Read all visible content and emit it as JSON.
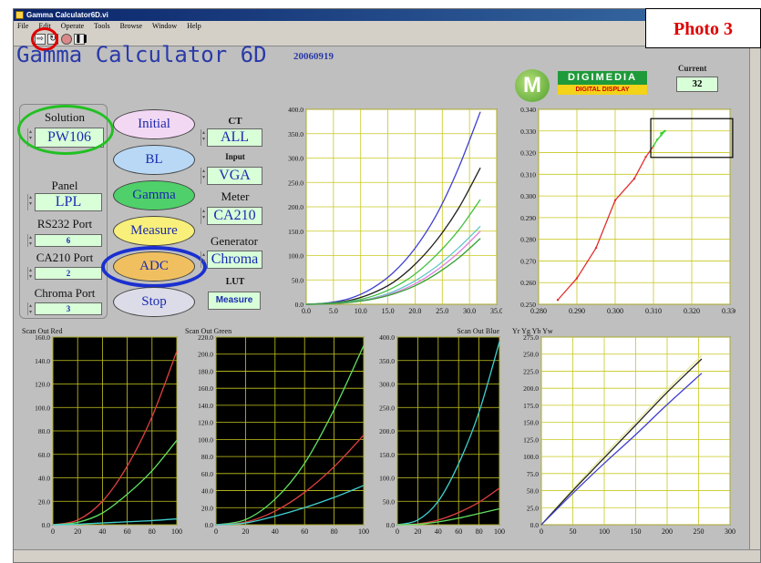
{
  "window": {
    "title": "Gamma Calculator6D.vi"
  },
  "menu": [
    "File",
    "Edit",
    "Operate",
    "Tools",
    "Browse",
    "Window",
    "Help"
  ],
  "photo_label": "Photo 3",
  "app": {
    "title": "Gamma Calculator 6D",
    "version": "20060919"
  },
  "logo": {
    "mark": "M",
    "top": "DIGIMEDIA",
    "bottom": "DIGITAL DISPLAY"
  },
  "current": {
    "label": "Current",
    "value": "32"
  },
  "controls": {
    "solution": {
      "label": "Solution",
      "value": "PW106"
    },
    "panel": {
      "label": "Panel",
      "value": "LPL"
    },
    "rs232": {
      "label": "RS232 Port",
      "value": "6"
    },
    "ca210": {
      "label": "CA210 Port",
      "value": "2"
    },
    "chroma": {
      "label": "Chroma Port",
      "value": "3"
    },
    "ct": {
      "label": "CT",
      "value": "ALL"
    },
    "input": {
      "label": "Input",
      "value": "VGA"
    },
    "meter": {
      "label": "Meter",
      "value": "CA210"
    },
    "generator": {
      "label": "Generator",
      "value": "Chroma"
    },
    "lut": {
      "label": "LUT",
      "value": "Measure"
    }
  },
  "buttons": {
    "initial": "Initial",
    "bl": "BL",
    "gamma": "Gamma",
    "measure": "Measure",
    "adc": "ADC",
    "stop": "Stop"
  },
  "colors": {
    "bg": "#bfbfbf",
    "plot_bg": "#000000",
    "grid": "#c8c820",
    "field_bg": "#d8ffd8",
    "text_blue": "#1a2ab0",
    "photo_red": "#e00000",
    "highlight_red": "#e00000",
    "highlight_green": "#22c022",
    "highlight_blue": "#1a30d0"
  },
  "chart_data": [
    {
      "type": "line",
      "xlim": [
        0,
        35
      ],
      "ylim": [
        0,
        400
      ],
      "xticks": [
        "0.0",
        "5.0",
        "10.0",
        "15.0",
        "20.0",
        "25.0",
        "30.0",
        "35.0"
      ],
      "yticks": [
        "0.0",
        "50.0",
        "100.0",
        "150.0",
        "200.0",
        "250.0",
        "300.0",
        "350.0",
        "400.0"
      ],
      "x": [
        0,
        4,
        8,
        12,
        16,
        20,
        24,
        28,
        32
      ],
      "series": [
        {
          "color": "#4040d0",
          "values": [
            0,
            3,
            12,
            32,
            65,
            115,
            185,
            280,
            395
          ]
        },
        {
          "color": "#202020",
          "values": [
            0,
            2,
            8,
            22,
            45,
            82,
            132,
            197,
            280
          ]
        },
        {
          "color": "#40c040",
          "values": [
            0,
            2,
            6,
            16,
            34,
            62,
            102,
            152,
            215
          ]
        },
        {
          "color": "#60c8c8",
          "values": [
            0,
            1,
            5,
            12,
            26,
            48,
            78,
            116,
            160
          ]
        },
        {
          "color": "#e080e0",
          "values": [
            0,
            1,
            4,
            11,
            23,
            42,
            70,
            106,
            150
          ]
        },
        {
          "color": "#30a030",
          "values": [
            0,
            1,
            4,
            10,
            21,
            38,
            63,
            95,
            135
          ]
        }
      ]
    },
    {
      "type": "line",
      "xlim": [
        0.28,
        0.33
      ],
      "ylim": [
        0.25,
        0.34
      ],
      "xticks": [
        "0.280",
        "0.290",
        "0.300",
        "0.310",
        "0.320",
        "0.330"
      ],
      "yticks": [
        "0.250",
        "0.260",
        "0.270",
        "0.280",
        "0.290",
        "0.300",
        "0.310",
        "0.320",
        "0.330",
        "0.340"
      ],
      "series": [
        {
          "color": "#e03030",
          "points": [
            [
              0.285,
              0.252
            ],
            [
              0.29,
              0.262
            ],
            [
              0.295,
              0.276
            ],
            [
              0.3,
              0.298
            ],
            [
              0.305,
              0.308
            ],
            [
              0.308,
              0.318
            ],
            [
              0.31,
              0.323
            ]
          ]
        },
        {
          "color": "#30d030",
          "points": [
            [
              0.31,
              0.323
            ],
            [
              0.311,
              0.326
            ],
            [
              0.312,
              0.328
            ],
            [
              0.313,
              0.33
            ],
            [
              0.312,
              0.329
            ]
          ]
        }
      ]
    },
    {
      "type": "line",
      "title": "Scan Out Red",
      "xlim": [
        0,
        100
      ],
      "ylim": [
        0,
        160
      ],
      "xticks": [
        "0",
        "20",
        "40",
        "60",
        "80",
        "100"
      ],
      "yticks": [
        "0.0",
        "20.0",
        "40.0",
        "60.0",
        "80.0",
        "100.0",
        "120.0",
        "140.0",
        "160.0"
      ],
      "x": [
        0,
        20,
        40,
        60,
        80,
        100
      ],
      "series": [
        {
          "color": "#e04040",
          "values": [
            0,
            4,
            20,
            50,
            92,
            148
          ]
        },
        {
          "color": "#60e060",
          "values": [
            0,
            2,
            10,
            26,
            46,
            72
          ]
        },
        {
          "color": "#40d0d0",
          "values": [
            0,
            0.5,
            1.5,
            2.5,
            3.5,
            5
          ]
        }
      ]
    },
    {
      "type": "line",
      "title": "Scan Out Green",
      "xlim": [
        0,
        100
      ],
      "ylim": [
        0,
        220
      ],
      "xticks": [
        "0",
        "20",
        "40",
        "60",
        "80",
        "100"
      ],
      "yticks": [
        "0.0",
        "20.0",
        "40.0",
        "60.0",
        "80.0",
        "100.0",
        "120.0",
        "140.0",
        "160.0",
        "180.0",
        "200.0",
        "220.0"
      ],
      "x": [
        0,
        20,
        40,
        60,
        80,
        100
      ],
      "series": [
        {
          "color": "#60e060",
          "values": [
            0,
            6,
            30,
            72,
            135,
            210
          ]
        },
        {
          "color": "#e04040",
          "values": [
            0,
            3,
            16,
            38,
            68,
            105
          ]
        },
        {
          "color": "#40d0d0",
          "values": [
            0,
            2,
            10,
            20,
            32,
            46
          ]
        }
      ]
    },
    {
      "type": "line",
      "title": "Scan Out Blue",
      "xlim": [
        0,
        100
      ],
      "ylim": [
        0,
        400
      ],
      "xticks": [
        "0",
        "20",
        "40",
        "60",
        "80",
        "100"
      ],
      "yticks": [
        "0.0",
        "50.0",
        "100.0",
        "150.0",
        "200.0",
        "250.0",
        "300.0",
        "350.0",
        "400.0"
      ],
      "x": [
        0,
        20,
        40,
        60,
        80,
        100
      ],
      "series": [
        {
          "color": "#40d0d0",
          "values": [
            0,
            10,
            50,
            130,
            240,
            390
          ]
        },
        {
          "color": "#e04040",
          "values": [
            0,
            2,
            10,
            26,
            48,
            78
          ]
        },
        {
          "color": "#60e060",
          "values": [
            0,
            1,
            6,
            14,
            24,
            34
          ]
        }
      ]
    },
    {
      "type": "line",
      "title": "Yr Yg Yb Yw",
      "xlim": [
        0,
        300
      ],
      "ylim": [
        0,
        275
      ],
      "xticks": [
        "0",
        "50",
        "100",
        "150",
        "200",
        "250",
        "300"
      ],
      "yticks": [
        "0.0",
        "25.0",
        "50.0",
        "75.0",
        "100.0",
        "125.0",
        "150.0",
        "175.0",
        "200.0",
        "225.0",
        "250.0",
        "275.0"
      ],
      "x": [
        0,
        50,
        100,
        150,
        200,
        255
      ],
      "series": [
        {
          "color": "#e8e8a0",
          "values": [
            0,
            52,
            102,
            150,
            198,
            248
          ]
        },
        {
          "color": "#202020",
          "values": [
            0,
            50,
            98,
            146,
            194,
            243
          ]
        },
        {
          "color": "#4040d0",
          "values": [
            0,
            46,
            90,
            132,
            176,
            222
          ]
        }
      ]
    }
  ]
}
